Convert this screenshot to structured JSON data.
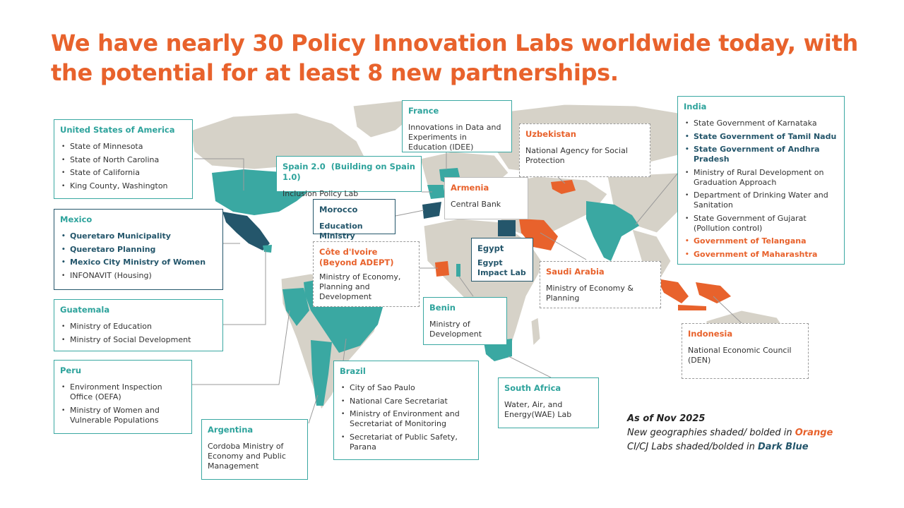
{
  "title": "We have nearly 30 Policy Innovation Labs worldwide today, with the potential for at least 8 new partnerships.",
  "colors": {
    "accent_orange": "#e8622c",
    "teal": "#3aa8a2",
    "dark_blue": "#24566b",
    "land": "#d6d2c8"
  },
  "boxes": {
    "usa": {
      "title": "United States of America",
      "items": [
        "State of Minnesota",
        "State of North Carolina",
        "State of California",
        "King County, Washington"
      ]
    },
    "mexico": {
      "title": "Mexico",
      "items": [
        "Queretaro Municipality",
        "Queretaro Planning",
        "Mexico City Ministry of Women",
        "INFONAVIT (Housing)"
      ]
    },
    "guatemala": {
      "title": "Guatemala",
      "items": [
        "Ministry of Education",
        "Ministry of Social Development"
      ]
    },
    "peru": {
      "title": "Peru",
      "items": [
        "Environment Inspection Office (OEFA)",
        "Ministry of Women and Vulnerable Populations"
      ]
    },
    "argentina": {
      "title": "Argentina",
      "desc": "Cordoba Ministry of Economy and Public Management"
    },
    "brazil": {
      "title": "Brazil",
      "items": [
        "City of Sao Paulo",
        "National Care Secretariat",
        "Ministry of Environment and Secretariat of Monitoring",
        "Secretariat of Public Safety, Parana"
      ]
    },
    "france": {
      "title": "France",
      "desc": "Innovations in Data and Experiments in Education (IDEE)"
    },
    "spain": {
      "title": "Spain 2.0",
      "subtitle": "(Building on Spain 1.0)",
      "desc": "Inclusion Policy Lab"
    },
    "morocco": {
      "title": "Morocco",
      "desc": "Education Ministry"
    },
    "cote": {
      "title": "Côte d'Ivoire (Beyond ADEPT)",
      "desc": "Ministry of Economy, Planning and Development"
    },
    "uzbekistan": {
      "title": "Uzbekistan",
      "desc": "National Agency for Social Protection"
    },
    "armenia": {
      "title": "Armenia",
      "desc": "Central Bank"
    },
    "egypt": {
      "title": "Egypt",
      "desc": "Egypt Impact Lab"
    },
    "saudi": {
      "title": "Saudi Arabia",
      "desc": "Ministry of Economy & Planning"
    },
    "benin": {
      "title": "Benin",
      "desc": "Ministry of Development"
    },
    "southafrica": {
      "title": "South Africa",
      "desc": "Water, Air, and Energy(WAE) Lab"
    },
    "india": {
      "title": "India",
      "items": [
        "State Government of Karnataka",
        "State Government of Tamil Nadu",
        "State Government of Andhra Pradesh",
        "Ministry of Rural Development on Graduation Approach",
        "Department of Drinking Water and Sanitation",
        "State Government of Gujarat (Pollution control)",
        "Government of Telangana",
        "Government of Maharashtra"
      ]
    },
    "indonesia": {
      "title": "Indonesia",
      "desc": "National Economic Council (DEN)"
    }
  },
  "legend": {
    "date": "As of Nov 2025",
    "line2_prefix": "New geographies shaded/ bolded in ",
    "line2_highlight": "Orange",
    "line3_prefix": "CI/CJ Labs shaded/bolded in ",
    "line3_highlight": "Dark Blue"
  }
}
